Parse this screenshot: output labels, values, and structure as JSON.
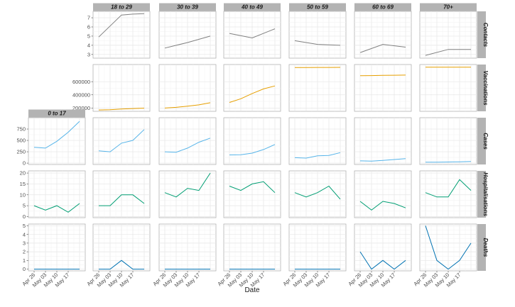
{
  "chart_data": {
    "type": "line",
    "layout": "facet_grid",
    "xlabel": "Date",
    "ylabel": "",
    "x": [
      "Apr 26",
      "May 03",
      "May 10",
      "May 17",
      "May 24"
    ],
    "x_tick_labels": [
      "Apr 26",
      "May 03",
      "May 10",
      "May 17"
    ],
    "age_groups": [
      "0 to 17",
      "18 to 29",
      "30 to 39",
      "40 to 49",
      "50 to 59",
      "60 to 69",
      "70+"
    ],
    "grid": true,
    "rows": [
      {
        "name": "Contacts",
        "color": "#808080",
        "yticks": [
          3,
          4,
          5,
          6,
          7
        ],
        "ylim": [
          2.6,
          7.7
        ],
        "series": {
          "18 to 29": [
            4.9,
            null,
            7.3,
            7.4,
            7.45
          ],
          "30 to 39": [
            3.7,
            null,
            4.3,
            null,
            5.0
          ],
          "40 to 49": [
            5.3,
            null,
            4.8,
            null,
            5.8
          ],
          "50 to 59": [
            4.5,
            null,
            4.1,
            null,
            4.0
          ],
          "60 to 69": [
            3.2,
            null,
            4.1,
            null,
            3.8
          ],
          "70+": [
            2.9,
            null,
            3.55,
            null,
            3.55
          ]
        }
      },
      {
        "name": "Vaccinations",
        "color": "#e69f00",
        "yticks": [
          200000,
          400000,
          600000
        ],
        "ylim": [
          150000,
          860000
        ],
        "series": {
          "18 to 29": [
            170000,
            175000,
            185000,
            192000,
            198000
          ],
          "30 to 39": [
            200000,
            210000,
            228000,
            248000,
            280000
          ],
          "40 to 49": [
            285000,
            340000,
            420000,
            490000,
            535000
          ],
          "50 to 59": [
            815000,
            815000,
            816000,
            816000,
            817000
          ],
          "60 to 69": [
            690000,
            692000,
            695000,
            698000,
            700000
          ],
          "70+": [
            820000,
            820000,
            820000,
            820000,
            820000
          ]
        }
      },
      {
        "name": "Cases",
        "color": "#56b4e9",
        "yticks": [
          0,
          250,
          500,
          750
        ],
        "ylim": [
          -30,
          1000
        ],
        "series": {
          "0 to 17": [
            350,
            330,
            480,
            680,
            920
          ],
          "18 to 29": [
            270,
            250,
            440,
            500,
            740
          ],
          "30 to 39": [
            250,
            240,
            330,
            460,
            550
          ],
          "40 to 49": [
            180,
            185,
            220,
            300,
            410
          ],
          "50 to 59": [
            120,
            110,
            160,
            170,
            230
          ],
          "60 to 69": [
            50,
            45,
            60,
            80,
            100
          ],
          "70+": [
            20,
            20,
            25,
            30,
            35
          ]
        }
      },
      {
        "name": "Hospitalisations",
        "color": "#009e73",
        "yticks": [
          0,
          5,
          10,
          15,
          20
        ],
        "ylim": [
          -0.5,
          21
        ],
        "series": {
          "0 to 17": [
            5,
            3,
            5,
            2,
            6
          ],
          "18 to 29": [
            5,
            5,
            10,
            10,
            6
          ],
          "30 to 39": [
            11,
            9,
            13,
            12,
            20
          ],
          "40 to 49": [
            14,
            12,
            15,
            16,
            11
          ],
          "50 to 59": [
            11,
            9,
            11,
            14,
            8
          ],
          "60 to 69": [
            7,
            3,
            7,
            6,
            4
          ],
          "70+": [
            11,
            9,
            9,
            17,
            12
          ]
        }
      },
      {
        "name": "Deaths",
        "color": "#0072b2",
        "yticks": [
          0,
          1,
          2,
          3,
          4,
          5
        ],
        "ylim": [
          -0.2,
          5.2
        ],
        "series": {
          "0 to 17": [
            0,
            0,
            0,
            0,
            0
          ],
          "18 to 29": [
            0,
            0,
            1,
            0,
            0
          ],
          "30 to 39": [
            0,
            0,
            0,
            0,
            0
          ],
          "40 to 49": [
            0,
            0,
            0,
            0,
            0
          ],
          "50 to 59": [
            0,
            0,
            0,
            0,
            0
          ],
          "60 to 69": [
            2,
            0,
            1,
            0,
            1
          ],
          "70+": [
            5,
            1,
            0,
            1,
            3
          ]
        }
      }
    ]
  }
}
